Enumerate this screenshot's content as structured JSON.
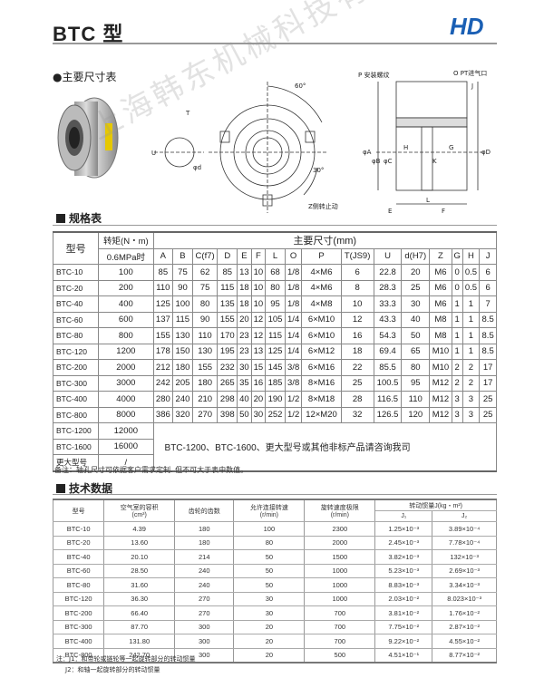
{
  "header": {
    "title": "BTC 型",
    "logo_text": "HD",
    "brand_color": "#1a5fb4"
  },
  "sections": {
    "dimensions": "●主要尺寸表",
    "spec": "规格表",
    "tech": "技术数据"
  },
  "drawing_labels": {
    "T": "T",
    "U": "U",
    "d": "φd",
    "angle60": "60°",
    "angle30": "30°",
    "z": "Z侧转止动",
    "p": "P 安装螺纹",
    "o": "O  PT进气口",
    "J": "J",
    "H": "H",
    "G": "G",
    "K": "K",
    "E": "E",
    "F": "F",
    "L": "L",
    "A": "φA",
    "B": "φB",
    "C": "φC",
    "D": "φD"
  },
  "watermark": "上海韩东机械科技有限公司",
  "spec_table": {
    "header_model": "型号",
    "header_torque": "转矩(N・m)",
    "header_torque_sub": "0.6MPa时",
    "header_dims": "主要尺寸(mm)",
    "columns": [
      "A",
      "B",
      "C(f7)",
      "D",
      "E",
      "F",
      "L",
      "O",
      "P",
      "T(JS9)",
      "U",
      "d(H7)",
      "Z",
      "G",
      "H",
      "J"
    ],
    "rows": [
      [
        "BTC-10",
        "100",
        "85",
        "75",
        "62",
        "85",
        "13",
        "10",
        "68",
        "1/8",
        "4×M6",
        "6",
        "22.8",
        "20",
        "M6",
        "0",
        "0.5",
        "6"
      ],
      [
        "BTC-20",
        "200",
        "110",
        "90",
        "75",
        "115",
        "18",
        "10",
        "80",
        "1/8",
        "4×M6",
        "8",
        "28.3",
        "25",
        "M6",
        "0",
        "0.5",
        "6"
      ],
      [
        "BTC-40",
        "400",
        "125",
        "100",
        "80",
        "135",
        "18",
        "10",
        "95",
        "1/8",
        "4×M8",
        "10",
        "33.3",
        "30",
        "M6",
        "1",
        "1",
        "7"
      ],
      [
        "BTC-60",
        "600",
        "137",
        "115",
        "90",
        "155",
        "20",
        "12",
        "105",
        "1/4",
        "6×M10",
        "12",
        "43.3",
        "40",
        "M8",
        "1",
        "1",
        "8.5"
      ],
      [
        "BTC-80",
        "800",
        "155",
        "130",
        "110",
        "170",
        "23",
        "12",
        "115",
        "1/4",
        "6×M10",
        "16",
        "54.3",
        "50",
        "M8",
        "1",
        "1",
        "8.5"
      ],
      [
        "BTC-120",
        "1200",
        "178",
        "150",
        "130",
        "195",
        "23",
        "13",
        "125",
        "1/4",
        "6×M12",
        "18",
        "69.4",
        "65",
        "M10",
        "1",
        "1",
        "8.5"
      ],
      [
        "BTC-200",
        "2000",
        "212",
        "180",
        "155",
        "232",
        "30",
        "15",
        "145",
        "3/8",
        "6×M16",
        "22",
        "85.5",
        "80",
        "M10",
        "2",
        "2",
        "17"
      ],
      [
        "BTC-300",
        "3000",
        "242",
        "205",
        "180",
        "265",
        "35",
        "16",
        "185",
        "3/8",
        "8×M16",
        "25",
        "100.5",
        "95",
        "M12",
        "2",
        "2",
        "17"
      ],
      [
        "BTC-400",
        "4000",
        "280",
        "240",
        "210",
        "298",
        "40",
        "20",
        "190",
        "1/2",
        "8×M18",
        "28",
        "116.5",
        "110",
        "M12",
        "3",
        "3",
        "25"
      ],
      [
        "BTC-800",
        "8000",
        "386",
        "320",
        "270",
        "398",
        "50",
        "30",
        "252",
        "1/2",
        "12×M20",
        "32",
        "126.5",
        "120",
        "M12",
        "3",
        "3",
        "25"
      ]
    ],
    "extra_rows": [
      [
        "BTC-1200",
        "12000"
      ],
      [
        "BTC-1600",
        "16000"
      ],
      [
        "更大型号",
        "/"
      ]
    ],
    "extra_message": "BTC-1200、BTC-1600、更大型号或其他非标产品请咨询我司",
    "note": "备注：轴孔尺寸可依据客户需求定制. 但不可大于表中数值。"
  },
  "tech_table": {
    "headers": [
      "型号",
      "空气室的容积\n(cm³)",
      "齿轮的齿数",
      "允许连接转速\n(r/min)",
      "旋转速度极限\n(r/min)",
      "转动惯量J(kg・m²)"
    ],
    "sub_headers": [
      "J₁",
      "J₂"
    ],
    "rows": [
      [
        "BTC-10",
        "4.39",
        "180",
        "100",
        "2300",
        "1.25×10⁻³",
        "3.89×10⁻⁴"
      ],
      [
        "BTC-20",
        "13.60",
        "180",
        "80",
        "2000",
        "2.45×10⁻³",
        "7.78×10⁻⁴"
      ],
      [
        "BTC-40",
        "20.10",
        "214",
        "50",
        "1500",
        "3.82×10⁻³",
        "132×10⁻³"
      ],
      [
        "BTC-60",
        "28.50",
        "240",
        "50",
        "1000",
        "5.23×10⁻³",
        "2.69×10⁻³"
      ],
      [
        "BTC-80",
        "31.60",
        "240",
        "50",
        "1000",
        "8.83×10⁻³",
        "3.34×10⁻³"
      ],
      [
        "BTC-120",
        "36.30",
        "270",
        "30",
        "1000",
        "2.03×10⁻²",
        "8.023×10⁻³"
      ],
      [
        "BTC-200",
        "66.40",
        "270",
        "30",
        "700",
        "3.81×10⁻²",
        "1.76×10⁻²"
      ],
      [
        "BTC-300",
        "87.70",
        "300",
        "20",
        "700",
        "7.75×10⁻²",
        "2.87×10⁻²"
      ],
      [
        "BTC-400",
        "131.80",
        "300",
        "20",
        "700",
        "9.22×10⁻²",
        "4.55×10⁻²"
      ],
      [
        "BTC-800",
        "242.70",
        "300",
        "20",
        "500",
        "4.51×10⁻¹",
        "8.77×10⁻²"
      ]
    ],
    "note1": "注：J1：和带轮或链轮等一起旋转部分的转动惯量",
    "note2": "J2：和轴一起旋转部分的转动惯量"
  }
}
